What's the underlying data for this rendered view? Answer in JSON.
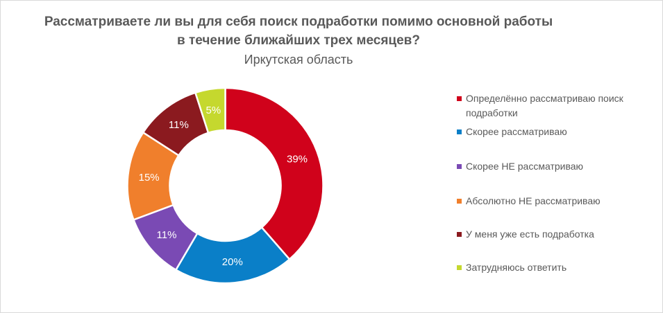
{
  "chart_data": {
    "type": "pie",
    "variant": "donut",
    "title": "Рассматриваете ли вы для себя поиск подработки помимо основной работы в течение ближайших трех месяцев?",
    "subtitle": "Иркутская область",
    "legend_position": "right",
    "slices": [
      {
        "label": "Определённо рассматриваю поиск подработки",
        "value": 39,
        "display": "39%",
        "color": "#d0021b"
      },
      {
        "label": "Скорее рассматриваю",
        "value": 20,
        "display": "20%",
        "color": "#0a7fc8"
      },
      {
        "label": "Скорее НЕ рассматриваю",
        "value": 11,
        "display": "11%",
        "color": "#7a4ab4"
      },
      {
        "label": "Абсолютно НЕ рассматриваю",
        "value": 15,
        "display": "15%",
        "color": "#f07f2c"
      },
      {
        "label": "У меня уже есть подработка",
        "value": 11,
        "display": "11%",
        "color": "#8b1a1f"
      },
      {
        "label": "Затрудняюсь ответить",
        "value": 5,
        "display": "5%",
        "color": "#c5d82e"
      }
    ]
  }
}
